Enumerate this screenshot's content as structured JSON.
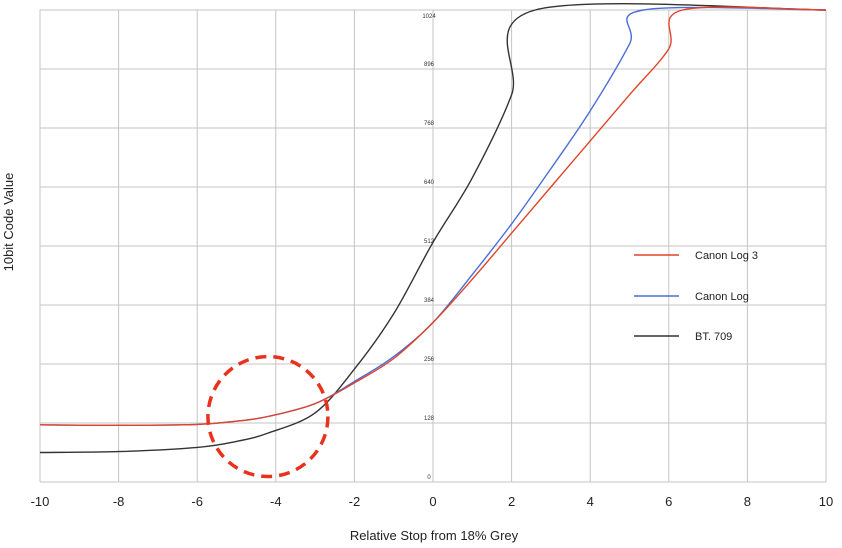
{
  "chart_data": {
    "type": "line",
    "xlabel": "Relative Stop from 18% Grey",
    "ylabel": "10bit Code Value",
    "xlim": [
      -10,
      10
    ],
    "ylim": [
      0,
      1024
    ],
    "x_ticks": [
      "-10",
      "-8",
      "-6",
      "-4",
      "-2",
      "0",
      "2",
      "4",
      "6",
      "8",
      "10"
    ],
    "y_ticks": [
      "0",
      "128",
      "256",
      "384",
      "512",
      "640",
      "768",
      "896",
      "1024"
    ],
    "grid": true,
    "legend_position": "right",
    "annotation": "red dashed circle around x ≈ -4.2, y ≈ 137",
    "series": [
      {
        "name": "Canon Log 3",
        "color": "#e0442a",
        "points": [
          [
            -10,
            124
          ],
          [
            -8,
            123
          ],
          [
            -6,
            125
          ],
          [
            -5,
            132
          ],
          [
            -4.2,
            142
          ],
          [
            -3,
            170
          ],
          [
            -2,
            215
          ],
          [
            -1,
            268
          ],
          [
            0,
            346
          ],
          [
            1,
            440
          ],
          [
            2,
            540
          ],
          [
            3,
            640
          ],
          [
            4,
            740
          ],
          [
            5,
            840
          ],
          [
            6,
            940
          ],
          [
            6.35,
            1024
          ],
          [
            10,
            1024
          ]
        ]
      },
      {
        "name": "Canon Log",
        "color": "#4a6ed6",
        "points": [
          [
            -10,
            124
          ],
          [
            -8,
            123
          ],
          [
            -6,
            125
          ],
          [
            -5,
            132
          ],
          [
            -4.2,
            142
          ],
          [
            -3,
            170
          ],
          [
            -2,
            218
          ],
          [
            -1,
            272
          ],
          [
            0,
            346
          ],
          [
            1,
            450
          ],
          [
            2,
            560
          ],
          [
            3,
            680
          ],
          [
            4,
            805
          ],
          [
            5,
            950
          ],
          [
            5.35,
            1024
          ],
          [
            10,
            1024
          ]
        ]
      },
      {
        "name": "BT. 709",
        "color": "#333333",
        "points": [
          [
            -10,
            64
          ],
          [
            -8,
            66
          ],
          [
            -6,
            75
          ],
          [
            -5,
            88
          ],
          [
            -4.2,
            106
          ],
          [
            -3,
            150
          ],
          [
            -2,
            245
          ],
          [
            -1,
            365
          ],
          [
            0,
            520
          ],
          [
            1,
            660
          ],
          [
            2,
            840
          ],
          [
            2.6,
            1024
          ],
          [
            10,
            1024
          ]
        ]
      }
    ]
  }
}
